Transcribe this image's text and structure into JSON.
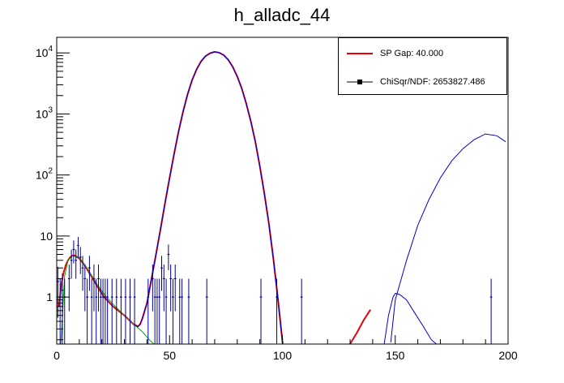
{
  "chart_data": {
    "type": "line",
    "title": "h_alladc_44",
    "xlabel": "",
    "ylabel": "",
    "xlim": [
      0,
      200
    ],
    "ylim": [
      0.17,
      18000
    ],
    "yscale": "log",
    "grid": false,
    "x_ticks": [
      0,
      50,
      100,
      150,
      200
    ],
    "y_ticks": [
      {
        "value": 1,
        "label": "1"
      },
      {
        "value": 10,
        "label": "10"
      },
      {
        "value": 100,
        "label": "10^2"
      },
      {
        "value": 1000,
        "label": "10^3"
      },
      {
        "value": 10000,
        "label": "10^4"
      }
    ],
    "legend": {
      "position": "top-right",
      "entries": [
        {
          "label": "SP Gap: 40.000",
          "color": "#e8000b",
          "marker": "line"
        },
        {
          "label": "ChiSqr/NDF: 2653827.486",
          "color": "#000000",
          "marker": "square"
        }
      ]
    },
    "series": [
      {
        "color": "#e8000b",
        "x": [
          1,
          2,
          3,
          4,
          5,
          6,
          7,
          8,
          10,
          12,
          15,
          18,
          21,
          25,
          30,
          34,
          36,
          37,
          38,
          40,
          42,
          44,
          46,
          48,
          50,
          52,
          54,
          56,
          58,
          60,
          62,
          64,
          66,
          68,
          70,
          72,
          74,
          76,
          78,
          80,
          82,
          84,
          86,
          88,
          90,
          92,
          94,
          96,
          98,
          100,
          101
        ],
        "y": [
          0.7,
          1.6,
          2.5,
          3.3,
          4.0,
          4.5,
          4.8,
          4.8,
          4.3,
          3.5,
          2.3,
          1.5,
          1.0,
          0.7,
          0.5,
          0.36,
          0.33,
          0.36,
          0.45,
          0.8,
          2,
          5,
          13,
          35,
          90,
          220,
          520,
          1100,
          2100,
          3600,
          5400,
          7300,
          8900,
          9900,
          10400,
          10100,
          9200,
          7700,
          5900,
          4100,
          2600,
          1480,
          760,
          350,
          140,
          50,
          16,
          4.2,
          0.95,
          0.19,
          0.1
        ]
      },
      {
        "color": "#e8000b",
        "x": [
          129.5,
          133,
          136,
          139
        ],
        "y": [
          0.16,
          0.26,
          0.42,
          0.62
        ]
      },
      {
        "color": "#0000cc",
        "x": [
          30,
          34,
          36,
          37,
          38,
          40,
          42,
          44,
          46,
          48,
          50,
          52,
          54,
          56,
          58,
          60,
          62,
          64,
          66,
          68,
          70,
          72,
          74,
          76,
          78,
          80,
          82,
          84,
          86,
          88,
          90,
          92,
          94,
          96,
          98,
          100,
          101
        ],
        "y": [
          0.5,
          0.36,
          0.33,
          0.36,
          0.45,
          0.8,
          2,
          5,
          13,
          35,
          90,
          220,
          520,
          1100,
          2100,
          3600,
          5400,
          7300,
          8900,
          9900,
          10400,
          10100,
          9200,
          7700,
          5900,
          4100,
          2600,
          1480,
          760,
          350,
          140,
          50,
          16,
          4.2,
          0.95,
          0.19,
          0.1
        ]
      },
      {
        "color": "#0000cc",
        "x": [
          145,
          147,
          149,
          150,
          152,
          155,
          158,
          162,
          166,
          170
        ],
        "y": [
          0.16,
          0.5,
          1.0,
          1.15,
          1.1,
          0.9,
          0.6,
          0.35,
          0.2,
          0.15
        ]
      },
      {
        "color": "#0000cc",
        "x": [
          148,
          150,
          155,
          160,
          165,
          170,
          175,
          180,
          185,
          190,
          195,
          199
        ],
        "y": [
          0.18,
          0.9,
          4,
          15,
          40,
          90,
          170,
          270,
          380,
          470,
          440,
          350
        ]
      },
      {
        "color": "#00aa00",
        "x": [
          1.5,
          2.5,
          3.5,
          5,
          7,
          9,
          11,
          14,
          18,
          22,
          26,
          30,
          34,
          38,
          41,
          43,
          44.5
        ],
        "y": [
          0.12,
          0.45,
          2.2,
          4.0,
          4.7,
          4.6,
          4.0,
          2.8,
          1.6,
          1.0,
          0.7,
          0.5,
          0.36,
          0.27,
          0.2,
          0.17,
          0.13
        ]
      }
    ],
    "points": {
      "color": "#00008b",
      "x": [
        0.5,
        1.5,
        2.5,
        3.5,
        5.5,
        6.5,
        7.5,
        8.5,
        9.5,
        10.5,
        11.5,
        12.5,
        13.5,
        14.5,
        15.5,
        16.5,
        17.5,
        18.5,
        19.5,
        20.5,
        21.5,
        22.5,
        24.5,
        26.5,
        28.5,
        30.5,
        32.5,
        34.5,
        40.5,
        42.5,
        43.5,
        44.5,
        45.5,
        46.5,
        47.5,
        48.5,
        49.5,
        50.5,
        51.5,
        52.5,
        54.5,
        55.5,
        58.5,
        66.5,
        90.5,
        97.5,
        108.5,
        192.5
      ],
      "y": [
        1.8,
        1.0,
        1.3,
        1.0,
        2.0,
        4.0,
        6.0,
        4.0,
        7.0,
        4.5,
        3.0,
        2.0,
        1.0,
        3.0,
        1.0,
        2.0,
        1.0,
        2.0,
        1.0,
        1.0,
        1.0,
        1.0,
        1.0,
        1.0,
        1.0,
        1.0,
        1.0,
        1.0,
        1.0,
        2.0,
        1.0,
        1.0,
        1.0,
        3.0,
        2.0,
        1.0,
        5.0,
        2.0,
        1.0,
        2.0,
        1.0,
        1.0,
        1.0,
        1.0,
        1.0,
        1.0,
        1.0,
        1.0
      ]
    }
  }
}
